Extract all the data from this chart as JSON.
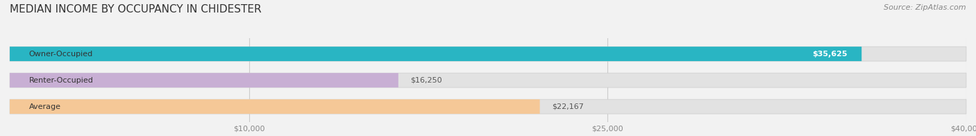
{
  "title": "MEDIAN INCOME BY OCCUPANCY IN CHIDESTER",
  "source": "Source: ZipAtlas.com",
  "categories": [
    "Owner-Occupied",
    "Renter-Occupied",
    "Average"
  ],
  "values": [
    35625,
    16250,
    22167
  ],
  "bar_colors": [
    "#29b5c3",
    "#c8afd4",
    "#f5c897"
  ],
  "bar_labels": [
    "$35,625",
    "$16,250",
    "$22,167"
  ],
  "label_colors": [
    "#ffffff",
    "#555555",
    "#555555"
  ],
  "xlim": [
    0,
    40000
  ],
  "xticks": [
    10000,
    25000,
    40000
  ],
  "xtick_labels": [
    "$10,000",
    "$25,000",
    "$40,000"
  ],
  "background_color": "#f2f2f2",
  "bar_bg_color": "#e2e2e2",
  "title_fontsize": 11,
  "source_fontsize": 8,
  "label_fontsize": 8,
  "tick_fontsize": 8,
  "bar_height": 0.55,
  "bar_edge_color": "#cccccc"
}
